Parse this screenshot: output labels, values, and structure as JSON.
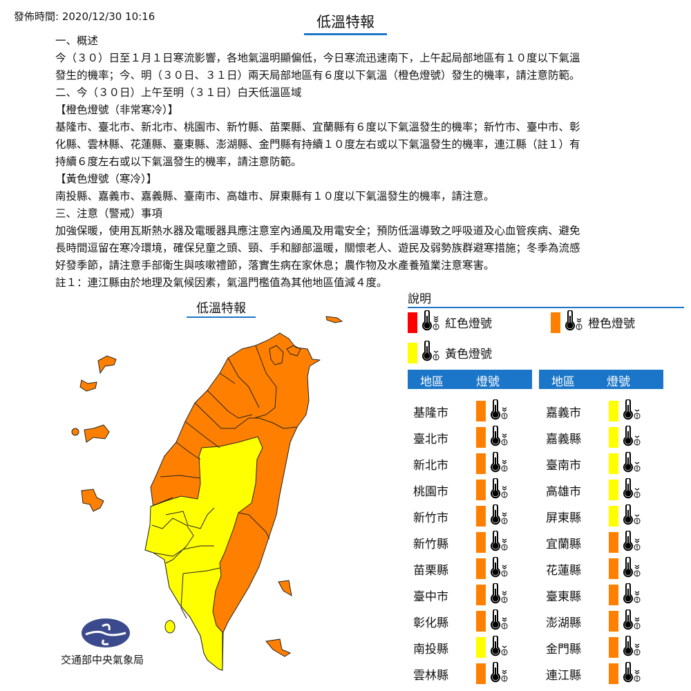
{
  "publish_time": "發佈時間: 2020/12/30 10:16",
  "title": "低溫特報",
  "body_lines": [
    "一、概述",
    "今（３０）日至１月１日寒流影響，各地氣溫明顯偏低，今日寒流迅速南下，上午起局部地區有１０度以下氣溫",
    "發生的機率；今、明（３０日、３１日）兩天局部地區有６度以下氣溫（橙色燈號）發生的機率，請注意防範。",
    "二、今（３０日）上午至明（３１日）白天低溫區域",
    "【橙色燈號（非常寒冷）】",
    "基隆市、臺北市、新北市、桃園市、新竹縣、苗栗縣、宜蘭縣有６度以下氣溫發生的機率；新竹市、臺中市、彰",
    "化縣、雲林縣、花蓮縣、臺東縣、澎湖縣、金門縣有持續１０度左右或以下氣溫發生的機率，連江縣（註１）有",
    "持續６度左右或以下氣溫發生的機率，請注意防範。",
    "【黃色燈號（寒冷）】",
    "南投縣、嘉義市、嘉義縣、臺南市、高雄市、屏東縣有１０度以下氣溫發生的機率，請注意。",
    "三、注意（警戒）事項",
    "加強保暖，使用瓦斯熱水器及電暖器具應注意室內通風及用電安全；預防低溫導致之呼吸道及心血管疾病、避免",
    "長時間逗留在寒冷環境，確保兒童之頭、頸、手和腳部溫暖，關懷老人、遊民及弱勢族群避寒措施；冬季為流感",
    "好發季節，請注意手部衛生與咳嗽禮節，落實生病在家休息；農作物及水產養殖業注意寒害。",
    "註１：連江縣由於地理及氣候因素，氣溫門檻值為其他地區值減４度。"
  ],
  "map": {
    "title": "低溫特報",
    "agency": "交通部中央氣象局"
  },
  "colors": {
    "red": "#ff0000",
    "orange": "#ff8000",
    "yellow": "#ffff00",
    "accent": "#1b75c8",
    "logo": "#3b4a8c"
  },
  "legend": {
    "title": "說明",
    "items": [
      {
        "label": "紅色燈號",
        "level": "red",
        "icon": "thermometer-alert-icon"
      },
      {
        "label": "橙色燈號",
        "level": "orange",
        "icon": "thermometer-alert-icon"
      },
      {
        "label": "黃色燈號",
        "level": "yellow",
        "icon": "thermometer-alert-icon"
      }
    ]
  },
  "table": {
    "headers": [
      "地區",
      "燈號"
    ],
    "left": [
      {
        "region": "基隆市",
        "level": "orange"
      },
      {
        "region": "臺北市",
        "level": "orange"
      },
      {
        "region": "新北市",
        "level": "orange"
      },
      {
        "region": "桃園市",
        "level": "orange"
      },
      {
        "region": "新竹市",
        "level": "orange"
      },
      {
        "region": "新竹縣",
        "level": "orange"
      },
      {
        "region": "苗栗縣",
        "level": "orange"
      },
      {
        "region": "臺中市",
        "level": "orange"
      },
      {
        "region": "彰化縣",
        "level": "orange"
      },
      {
        "region": "南投縣",
        "level": "yellow"
      },
      {
        "region": "雲林縣",
        "level": "orange"
      }
    ],
    "right": [
      {
        "region": "嘉義市",
        "level": "yellow"
      },
      {
        "region": "嘉義縣",
        "level": "yellow"
      },
      {
        "region": "臺南市",
        "level": "yellow"
      },
      {
        "region": "高雄市",
        "level": "yellow"
      },
      {
        "region": "屏東縣",
        "level": "yellow"
      },
      {
        "region": "宜蘭縣",
        "level": "orange"
      },
      {
        "region": "花蓮縣",
        "level": "orange"
      },
      {
        "region": "臺東縣",
        "level": "orange"
      },
      {
        "region": "澎湖縣",
        "level": "orange"
      },
      {
        "region": "金門縣",
        "level": "orange"
      },
      {
        "region": "連江縣",
        "level": "orange"
      }
    ]
  }
}
